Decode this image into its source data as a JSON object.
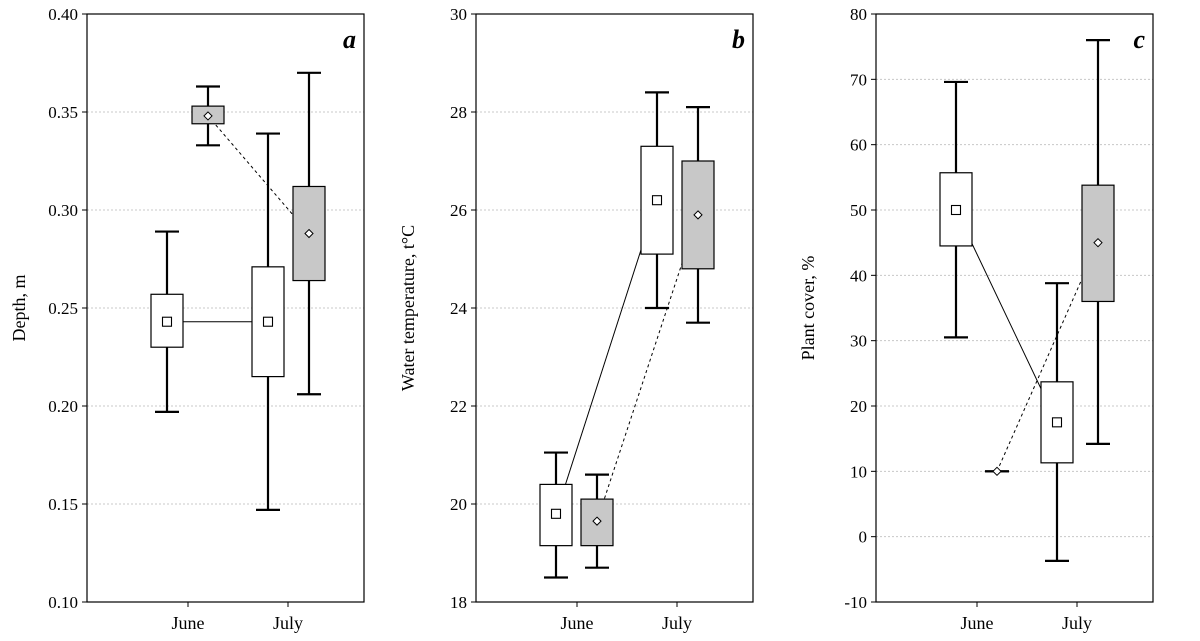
{
  "chart_data": [
    {
      "type": "box",
      "panel_label": "a",
      "ylabel": "Depth, m",
      "ylim": [
        0.1,
        0.4
      ],
      "yticks": [
        0.1,
        0.15,
        0.2,
        0.25,
        0.3,
        0.35,
        0.4
      ],
      "ytick_labels": [
        "0.10",
        "0.15",
        "0.20",
        "0.25",
        "0.30",
        "0.35",
        "0.40"
      ],
      "categories": [
        "June",
        "July"
      ],
      "grid": true,
      "series": [
        {
          "color": "#ffffff",
          "line": "solid",
          "boxes": [
            {
              "whisker_low": 0.197,
              "q1": 0.23,
              "median": 0.243,
              "q3": 0.257,
              "whisker_high": 0.289
            },
            {
              "whisker_low": 0.147,
              "q1": 0.215,
              "median": 0.243,
              "q3": 0.271,
              "whisker_high": 0.339
            }
          ]
        },
        {
          "color": "#c8c8c8",
          "line": "dashed",
          "boxes": [
            {
              "whisker_low": 0.333,
              "q1": 0.344,
              "median": 0.348,
              "q3": 0.353,
              "whisker_high": 0.363
            },
            {
              "whisker_low": 0.206,
              "q1": 0.264,
              "median": 0.288,
              "q3": 0.312,
              "whisker_high": 0.37
            }
          ]
        }
      ]
    },
    {
      "type": "box",
      "panel_label": "b",
      "ylabel": "Water temperature, t°C",
      "ylim": [
        18,
        30
      ],
      "yticks": [
        18,
        20,
        22,
        24,
        26,
        28,
        30
      ],
      "ytick_labels": [
        "18",
        "20",
        "22",
        "24",
        "26",
        "28",
        "30"
      ],
      "categories": [
        "June",
        "July"
      ],
      "grid": true,
      "series": [
        {
          "color": "#ffffff",
          "line": "solid",
          "boxes": [
            {
              "whisker_low": 18.5,
              "q1": 19.15,
              "median": 19.8,
              "q3": 20.4,
              "whisker_high": 21.05
            },
            {
              "whisker_low": 24.0,
              "q1": 25.1,
              "median": 26.2,
              "q3": 27.3,
              "whisker_high": 28.4
            }
          ]
        },
        {
          "color": "#c8c8c8",
          "line": "dashed",
          "boxes": [
            {
              "whisker_low": 18.7,
              "q1": 19.15,
              "median": 19.65,
              "q3": 20.1,
              "whisker_high": 20.6
            },
            {
              "whisker_low": 23.7,
              "q1": 24.8,
              "median": 25.9,
              "q3": 27.0,
              "whisker_high": 28.1
            }
          ]
        }
      ]
    },
    {
      "type": "box",
      "panel_label": "c",
      "ylabel": "Plant cover, %",
      "ylim": [
        -10,
        80
      ],
      "yticks": [
        -10,
        0,
        10,
        20,
        30,
        40,
        50,
        60,
        70,
        80
      ],
      "ytick_labels": [
        "-10",
        "0",
        "10",
        "20",
        "30",
        "40",
        "50",
        "60",
        "70",
        "80"
      ],
      "categories": [
        "June",
        "July"
      ],
      "grid": true,
      "series": [
        {
          "color": "#ffffff",
          "line": "solid",
          "boxes": [
            {
              "whisker_low": 30.5,
              "q1": 44.5,
              "median": 50.0,
              "q3": 55.7,
              "whisker_high": 69.6
            },
            {
              "whisker_low": -3.7,
              "q1": 11.3,
              "median": 17.5,
              "q3": 23.7,
              "whisker_high": 38.8
            }
          ]
        },
        {
          "color": "#c8c8c8",
          "line": "dashed",
          "boxes": [
            {
              "whisker_low": 10.0,
              "q1": 10.0,
              "median": 10.0,
              "q3": 10.0,
              "whisker_high": 10.0
            },
            {
              "whisker_low": 14.2,
              "q1": 36.0,
              "median": 45.0,
              "q3": 53.8,
              "whisker_high": 76.0
            }
          ]
        }
      ]
    }
  ]
}
